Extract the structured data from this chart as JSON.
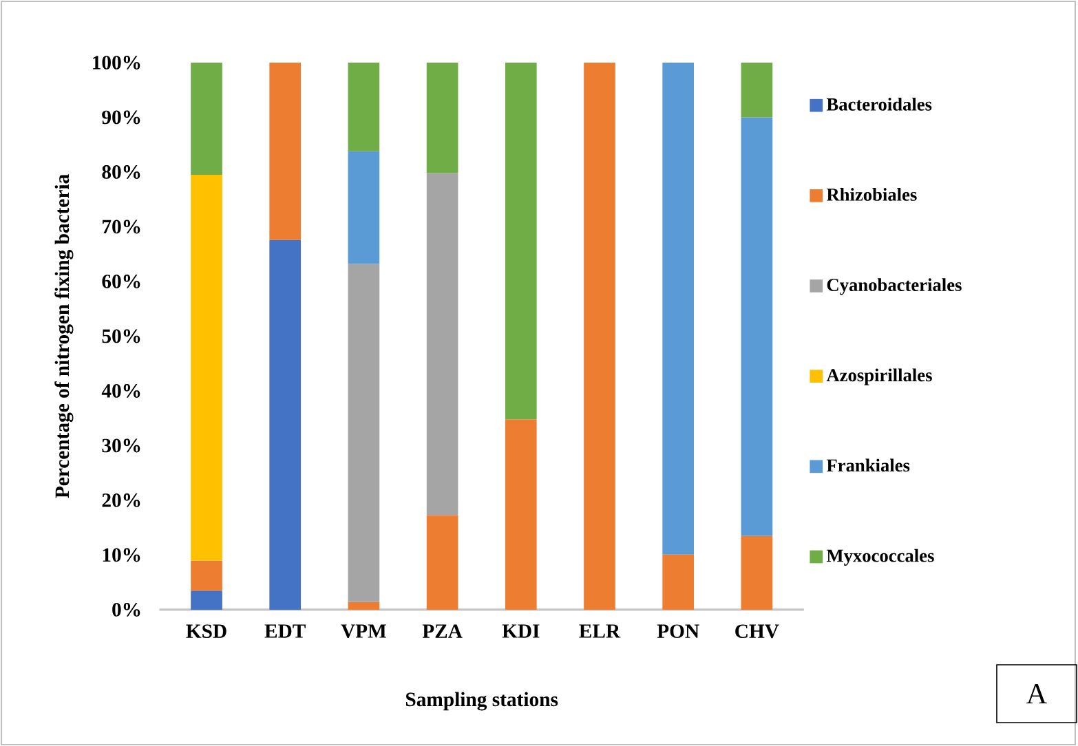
{
  "chart_data": {
    "type": "bar",
    "stacked": true,
    "ylabel": "Percentage of nitrogen fixing bacteria",
    "xlabel": "Sampling stations",
    "categories": [
      "KSD",
      "EDT",
      "VPM",
      "PZA",
      "KDI",
      "ELR",
      "PON",
      "CHV"
    ],
    "series": [
      {
        "name": "Bacteroidales",
        "color": "#4472c4",
        "values": [
          3.5,
          67.6,
          0,
          0,
          0,
          0,
          0,
          0
        ]
      },
      {
        "name": "Rhizobiales",
        "color": "#ed7d31",
        "values": [
          5.5,
          32.4,
          1.4,
          17.3,
          34.8,
          100,
          10.1,
          13.5
        ]
      },
      {
        "name": "Cyanobacteriales",
        "color": "#a5a5a5",
        "values": [
          0,
          0,
          61.8,
          62.5,
          0,
          0,
          0,
          0
        ]
      },
      {
        "name": "Azospirillales",
        "color": "#ffc000",
        "values": [
          70.5,
          0,
          0,
          0,
          0,
          0,
          0,
          0
        ]
      },
      {
        "name": "Frankiales",
        "color": "#5b9bd5",
        "values": [
          0,
          0,
          20.6,
          0,
          0,
          0,
          89.9,
          76.5
        ]
      },
      {
        "name": "Myxococcales",
        "color": "#70ad47",
        "values": [
          20.5,
          0,
          16.2,
          20.2,
          65.2,
          0,
          0,
          10
        ]
      }
    ],
    "ylim": [
      0,
      100
    ],
    "yticks": [
      {
        "value": 0,
        "label": "0%"
      },
      {
        "value": 10,
        "label": "10%"
      },
      {
        "value": 20,
        "label": "20%"
      },
      {
        "value": 30,
        "label": "30%"
      },
      {
        "value": 40,
        "label": "40%"
      },
      {
        "value": 50,
        "label": "50%"
      },
      {
        "value": 60,
        "label": "60%"
      },
      {
        "value": 70,
        "label": "70%"
      },
      {
        "value": 80,
        "label": "80%"
      },
      {
        "value": 90,
        "label": "90%"
      },
      {
        "value": 100,
        "label": "100%"
      }
    ],
    "legend": "right",
    "grid": false,
    "annotations": [
      "A"
    ]
  }
}
